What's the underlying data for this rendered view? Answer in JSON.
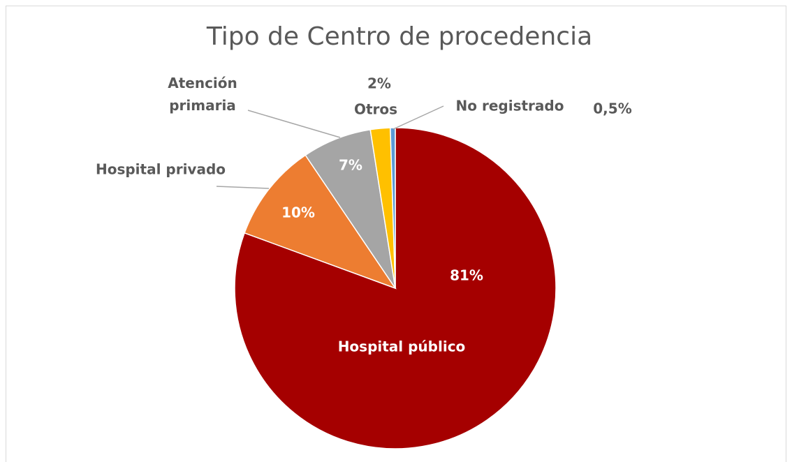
{
  "chart_data": {
    "type": "pie",
    "title": "Tipo de Centro de procedencia",
    "categories": [
      "Hospital público",
      "Hospital privado",
      "Atención primaria",
      "Otros",
      "No registrado"
    ],
    "values": [
      81,
      10,
      7,
      2,
      0.5
    ],
    "value_labels": [
      "81%",
      "10%",
      "7%",
      "2%",
      "0,5%"
    ],
    "colors": [
      "#a50000",
      "#ed7d31",
      "#a5a5a5",
      "#ffc000",
      "#5b9bd5"
    ]
  }
}
